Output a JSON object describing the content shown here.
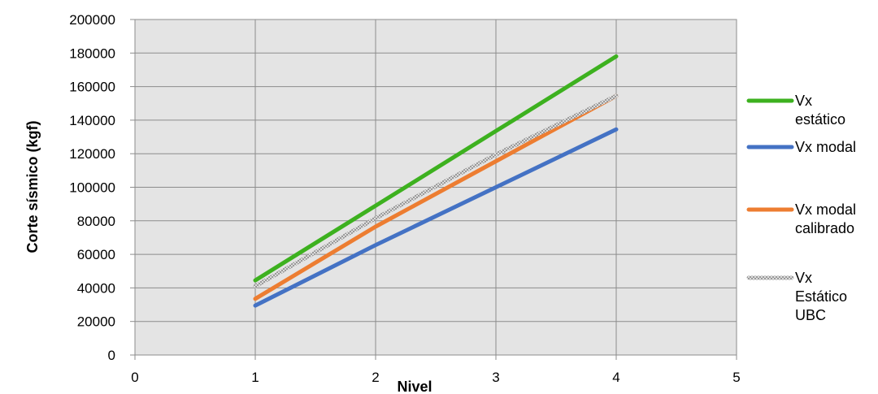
{
  "chart_data": {
    "type": "line",
    "title": "",
    "xlabel": "Nivel",
    "ylabel": "Corte sísmico (kgf)",
    "xlim": [
      0,
      5
    ],
    "ylim": [
      0,
      200000
    ],
    "x_ticks": [
      "0",
      "1",
      "2",
      "3",
      "4",
      "5"
    ],
    "y_ticks": [
      "0",
      "20000",
      "40000",
      "60000",
      "80000",
      "100000",
      "120000",
      "140000",
      "160000",
      "180000",
      "200000"
    ],
    "grid": true,
    "legend_position": "right",
    "series": [
      {
        "name": "Vx estático",
        "legend_lines": [
          "Vx",
          "estático"
        ],
        "color": "#3DB11F",
        "style": "solid",
        "x": [
          1,
          2,
          3,
          4
        ],
        "values": [
          44500,
          89000,
          133500,
          178000
        ]
      },
      {
        "name": "Vx modal",
        "legend_lines": [
          "Vx modal"
        ],
        "color": "#4472C4",
        "style": "solid",
        "x": [
          1,
          2,
          3,
          4
        ],
        "values": [
          29500,
          65500,
          100000,
          134500
        ]
      },
      {
        "name": "Vx modal calibrado",
        "legend_lines": [
          "Vx modal",
          "calibrado"
        ],
        "color": "#ED7D31",
        "style": "solid",
        "x": [
          1,
          2,
          3,
          4
        ],
        "values": [
          33500,
          76500,
          115500,
          154500
        ]
      },
      {
        "name": "Vx Estático UBC",
        "legend_lines": [
          "Vx",
          "Estático",
          "UBC"
        ],
        "color": "#A6A6A6",
        "style": "textured",
        "x": [
          1,
          2,
          3,
          4
        ],
        "values": [
          41000,
          81500,
          119500,
          154500
        ]
      }
    ]
  }
}
